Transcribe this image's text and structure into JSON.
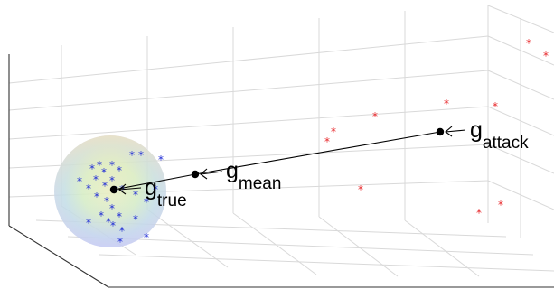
{
  "diagram": {
    "labels": {
      "g_true": {
        "main": "g",
        "sub": "true"
      },
      "g_mean": {
        "main": "g",
        "sub": "mean"
      },
      "g_attack": {
        "main": "g",
        "sub": "attack"
      }
    },
    "marker_symbol": "*",
    "colors": {
      "honest_points": "#1f2bd6",
      "malicious_points": "#e8262a",
      "vector": "#000000",
      "grid": "#d9d9d9"
    },
    "icons": {
      "cluster": "gradient-sphere",
      "points": "asterisk",
      "arrow": "arrowhead"
    }
  }
}
